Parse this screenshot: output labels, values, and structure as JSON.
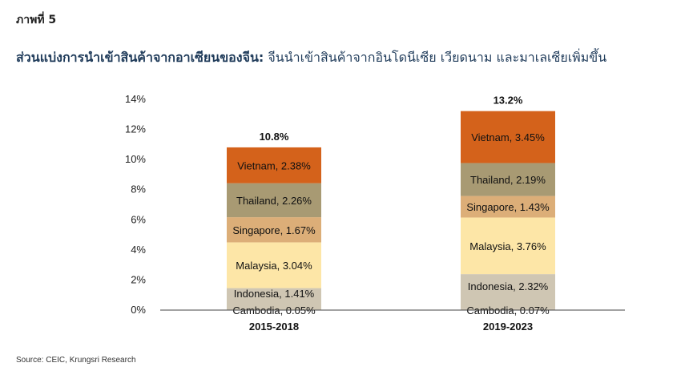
{
  "figure_label": "ภาพที่ 5",
  "title": {
    "bold": "ส่วนแบ่งการนำเข้าสินค้าจากอาเซียนของจีน",
    "separator": ":",
    "rest": " จีนนำเข้าสินค้าจากอินโดนีเซีย เวียดนาม และมาเลเซียเพิ่มขึ้น"
  },
  "source": "Source: CEIC, Krungsri Research",
  "chart_data": {
    "type": "bar",
    "stacked": true,
    "categories": [
      "2015-2018",
      "2019-2023"
    ],
    "ylim": [
      0,
      14
    ],
    "yticks": [
      "0%",
      "2%",
      "4%",
      "6%",
      "8%",
      "10%",
      "12%",
      "14%"
    ],
    "grid": false,
    "totals": [
      "10.8%",
      "13.2%"
    ],
    "series": [
      {
        "name": "Cambodia",
        "values": [
          0.05,
          0.07
        ],
        "color": "#cfc6b3",
        "labels": [
          "Cambodia, 0.05%",
          "Cambodia, 0.07%"
        ]
      },
      {
        "name": "Indonesia",
        "values": [
          1.41,
          2.32
        ],
        "color": "#cfc6b3",
        "labels": [
          "Indonesia, 1.41%",
          "Indonesia, 2.32%"
        ]
      },
      {
        "name": "Malaysia",
        "values": [
          3.04,
          3.76
        ],
        "color": "#fde6a7",
        "labels": [
          "Malaysia, 3.04%",
          "Malaysia, 3.76%"
        ]
      },
      {
        "name": "Singapore",
        "values": [
          1.67,
          1.43
        ],
        "color": "#dcae78",
        "labels": [
          "Singapore, 1.67%",
          "Singapore, 1.43%"
        ]
      },
      {
        "name": "Thailand",
        "values": [
          2.26,
          2.19
        ],
        "color": "#a89a73",
        "labels": [
          "Thailand, 2.26%",
          "Thailand, 2.19%"
        ]
      },
      {
        "name": "Vietnam",
        "values": [
          2.38,
          3.45
        ],
        "color": "#d4621b",
        "labels": [
          "Vietnam, 2.38%",
          "Vietnam, 3.45%"
        ]
      }
    ]
  }
}
